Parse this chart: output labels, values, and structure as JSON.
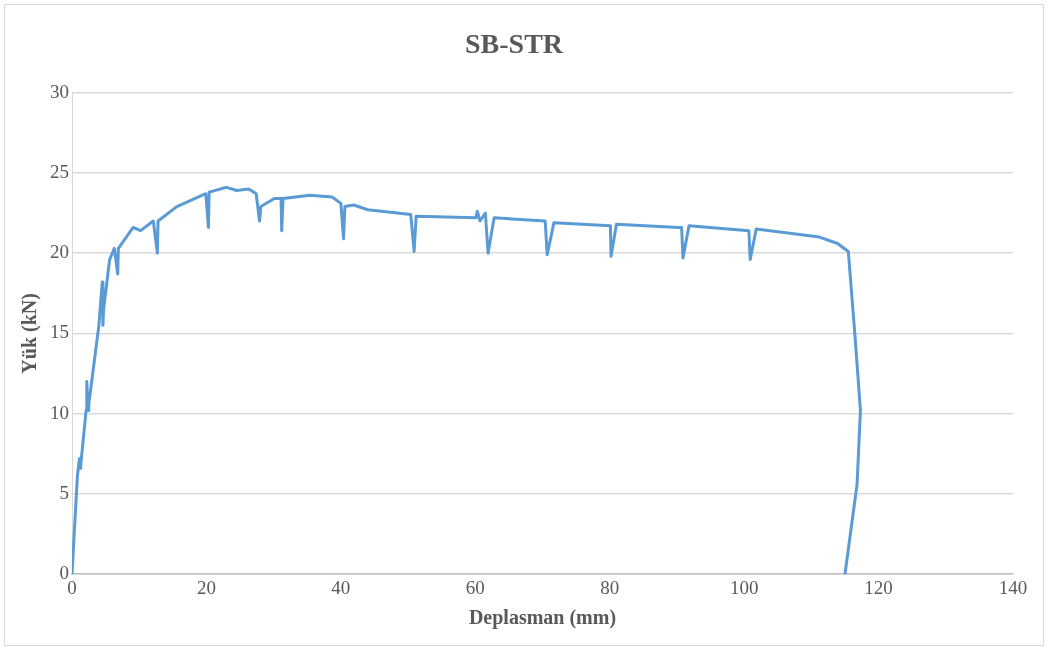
{
  "chart_data": {
    "type": "line",
    "title": "SB-STR",
    "xlabel": "Deplasman (mm)",
    "ylabel": "Yük (kN)",
    "xlim": [
      0,
      140
    ],
    "xticks": [
      0,
      20,
      40,
      60,
      80,
      100,
      120,
      140
    ],
    "ylim": [
      0,
      30
    ],
    "yticks": [
      0,
      5,
      10,
      15,
      20,
      25,
      30
    ],
    "grid": "y",
    "legend": false,
    "marker": "none",
    "line_style": "solid",
    "series": [
      {
        "color": "#5b9bd5",
        "x": [
          0,
          0.8,
          1.1,
          1.2,
          1.3,
          2.1,
          2.2,
          2.4,
          2.5,
          4.0,
          4.5,
          4.6,
          4.7,
          5.6,
          6.3,
          6.8,
          6.9,
          9.1,
          10.2,
          12.1,
          12.7,
          12.8,
          15.6,
          19.9,
          20.3,
          20.4,
          23,
          24.5,
          26.3,
          27.4,
          27.9,
          28.1,
          30.1,
          31.1,
          31.2,
          31.4,
          35.4,
          38.7,
          40,
          40.4,
          40.6,
          41.9,
          44,
          50.4,
          50.9,
          51.2,
          60.1,
          60.3,
          60.7,
          61.5,
          61.9,
          62.8,
          70.4,
          70.7,
          71.7,
          80.1,
          80.2,
          81,
          90.2,
          90.7,
          90.9,
          91.8,
          100.7,
          100.9,
          101.8,
          111.2,
          113.9,
          115.5,
          116.5,
          117.3,
          116.8,
          115
        ],
        "values": [
          0,
          6.1,
          7.2,
          6.6,
          6.8,
          10.2,
          12.0,
          10.2,
          10.6,
          15.5,
          18.2,
          15.5,
          16.5,
          19.6,
          20.3,
          18.7,
          20.3,
          21.6,
          21.4,
          22.0,
          20.0,
          22.0,
          22.9,
          23.7,
          21.6,
          23.8,
          24.1,
          23.9,
          24.0,
          23.7,
          22.0,
          22.9,
          23.4,
          23.4,
          21.4,
          23.4,
          23.6,
          23.5,
          23.1,
          20.9,
          22.9,
          23.0,
          22.7,
          22.4,
          20.1,
          22.3,
          22.2,
          22.6,
          22.0,
          22.5,
          20.0,
          22.2,
          22.0,
          19.9,
          21.9,
          21.7,
          19.8,
          21.8,
          21.6,
          21.6,
          19.7,
          21.7,
          21.4,
          19.6,
          21.5,
          21.0,
          20.6,
          20.1,
          14.8,
          10.2,
          5.6,
          0
        ]
      }
    ]
  }
}
